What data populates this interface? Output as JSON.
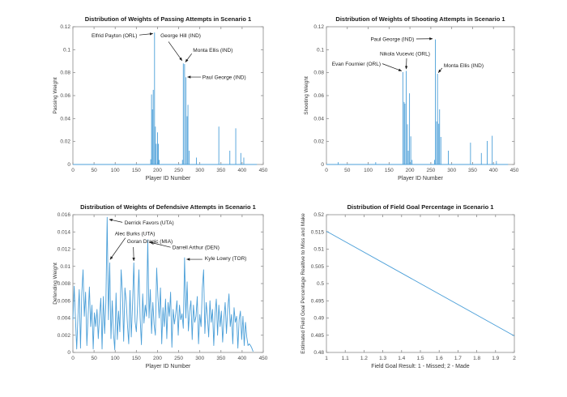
{
  "figure": {
    "background": "#ffffff",
    "accent_color": "#4b9fd8",
    "axis_color": "#8a8a8a",
    "text_color": "#1a1a1a",
    "tick_text_color": "#4a4a4a"
  },
  "chart_data": [
    {
      "name": "passing-weights",
      "type": "stem",
      "title": "Distribution of Weights of Passing Attempts in Scenario 1",
      "xlabel": "Player ID Number",
      "ylabel": "Passing Weight",
      "xlim": [
        0,
        450
      ],
      "ylim": [
        0,
        0.12
      ],
      "grid": false,
      "legend": null,
      "xticks": {
        "values": [
          0,
          50,
          100,
          150,
          200,
          250,
          300,
          350,
          400,
          450
        ],
        "labels": [
          "0",
          "50",
          "100",
          "150",
          "200",
          "250",
          "300",
          "350",
          "400",
          "450"
        ]
      },
      "yticks": {
        "values": [
          0,
          0.02,
          0.04,
          0.06,
          0.08,
          0.1,
          0.12
        ],
        "labels": [
          "0",
          "0.02",
          "0.04",
          "0.06",
          "0.08",
          "0.1",
          "0.12"
        ]
      },
      "baseline_end": 435,
      "points": [
        [
          184,
          0.0045
        ],
        [
          186,
          0.061
        ],
        [
          188,
          0.048
        ],
        [
          190,
          0.065
        ],
        [
          193,
          0.115
        ],
        [
          195,
          0.033
        ],
        [
          197,
          0.018
        ],
        [
          200,
          0.028
        ],
        [
          202,
          0.018
        ],
        [
          204,
          0.004
        ],
        [
          259,
          0.004
        ],
        [
          261,
          0.088
        ],
        [
          264,
          0.0875
        ],
        [
          267,
          0.076
        ],
        [
          270,
          0.042
        ],
        [
          272,
          0.052
        ],
        [
          275,
          0.012
        ],
        [
          292,
          0.006
        ],
        [
          345,
          0.033
        ],
        [
          371,
          0.012
        ],
        [
          385,
          0.0315
        ],
        [
          397,
          0.01
        ],
        [
          404,
          0.006
        ]
      ],
      "annotations": [
        {
          "text": "Elfrid Payton (ORL)",
          "anchor": "end",
          "tpos": [
            152,
            0.111
          ],
          "tail": [
            157,
            0.1128
          ],
          "tip": [
            189,
            0.114
          ]
        },
        {
          "text": "George Hill (IND)",
          "anchor": "start",
          "tpos": [
            207,
            0.111
          ],
          "tail": [
            226,
            0.107
          ],
          "tip": [
            258,
            0.0905
          ]
        },
        {
          "text": "Monta Ellis (IND)",
          "anchor": "start",
          "tpos": [
            284,
            0.0982
          ],
          "tail": [
            281,
            0.0966
          ],
          "tip": [
            266,
            0.0892
          ]
        },
        {
          "text": "Paul George (IND)",
          "anchor": "start",
          "tpos": [
            306,
            0.0746
          ],
          "tail": [
            303,
            0.0762
          ],
          "tip": [
            271,
            0.0762
          ]
        }
      ]
    },
    {
      "name": "shooting-weights",
      "type": "stem",
      "title": "Distribution of Weights of Shooting Attempts in Scenario 1",
      "xlabel": "Player ID Number",
      "ylabel": "Shooting Weight",
      "xlim": [
        0,
        450
      ],
      "ylim": [
        0,
        0.12
      ],
      "grid": false,
      "legend": null,
      "xticks": {
        "values": [
          0,
          50,
          100,
          150,
          200,
          250,
          300,
          350,
          400,
          450
        ],
        "labels": [
          "0",
          "50",
          "100",
          "150",
          "200",
          "250",
          "300",
          "350",
          "400",
          "450"
        ]
      },
      "yticks": {
        "values": [
          0,
          0.02,
          0.04,
          0.06,
          0.08,
          0.1,
          0.12
        ],
        "labels": [
          "0",
          "0.02",
          "0.04",
          "0.06",
          "0.08",
          "0.1",
          "0.12"
        ]
      },
      "baseline_end": 435,
      "points": [
        [
          28,
          0.002
        ],
        [
          118,
          0.002
        ],
        [
          183,
          0.0805
        ],
        [
          186,
          0.0545
        ],
        [
          188,
          0.053
        ],
        [
          191,
          0.0815
        ],
        [
          194,
          0.035
        ],
        [
          196,
          0.012
        ],
        [
          199,
          0.062
        ],
        [
          202,
          0.0245
        ],
        [
          205,
          0.004
        ],
        [
          259,
          0.004
        ],
        [
          261,
          0.109
        ],
        [
          264,
          0.0375
        ],
        [
          266,
          0.079
        ],
        [
          269,
          0.0355
        ],
        [
          271,
          0.048
        ],
        [
          274,
          0.024
        ],
        [
          292,
          0.012
        ],
        [
          345,
          0.019
        ],
        [
          371,
          0.01
        ],
        [
          385,
          0.0205
        ],
        [
          397,
          0.025
        ],
        [
          407,
          0.003
        ]
      ],
      "annotations": [
        {
          "text": "Paul George (IND)",
          "anchor": "end",
          "tpos": [
            210,
            0.1078
          ],
          "tail": [
            215,
            0.1094
          ],
          "tip": [
            254,
            0.1096
          ]
        },
        {
          "text": "Nikola Vucevic (ORL)",
          "anchor": "start",
          "tpos": [
            128,
            0.0948
          ],
          "tail": [
            192,
            0.0925
          ],
          "tip": [
            191,
            0.0832
          ]
        },
        {
          "text": "Evan Fournier (ORL)",
          "anchor": "end",
          "tpos": [
            130,
            0.0862
          ],
          "tail": [
            134,
            0.0878
          ],
          "tip": [
            180,
            0.0815
          ]
        },
        {
          "text": "Monta Ellis (IND)",
          "anchor": "start",
          "tpos": [
            281,
            0.0848
          ],
          "tail": [
            277,
            0.084
          ],
          "tip": [
            268,
            0.08
          ]
        }
      ]
    },
    {
      "name": "defensive-weights",
      "type": "line",
      "title": "Distribution of Weights of Defendsive Attempts in Scenario 1",
      "xlabel": "Player ID Number",
      "ylabel": "Defending Weight",
      "xlim": [
        0,
        450
      ],
      "ylim": [
        0,
        0.016
      ],
      "grid": false,
      "legend": null,
      "xticks": {
        "values": [
          0,
          50,
          100,
          150,
          200,
          250,
          300,
          350,
          400,
          450
        ],
        "labels": [
          "0",
          "50",
          "100",
          "150",
          "200",
          "250",
          "300",
          "350",
          "400",
          "450"
        ]
      },
      "yticks": {
        "values": [
          0,
          0.002,
          0.004,
          0.006,
          0.008,
          0.01,
          0.012,
          0.014,
          0.016
        ],
        "labels": [
          "0",
          "0.002",
          "0.004",
          "0.006",
          "0.008",
          "0.01",
          "0.012",
          "0.014",
          "0.016"
        ]
      },
      "x_start": 0,
      "x_step": 3,
      "values": [
        0.0038,
        0.0077,
        0.004,
        0.0004,
        0.0043,
        0.0073,
        0.0005,
        0.0069,
        0.0096,
        0.0042,
        0.007,
        0.0008,
        0.0043,
        0.0076,
        0.003,
        0.0055,
        0.0004,
        0.0046,
        0.003,
        0.005,
        0.0016,
        0.0043,
        0.0063,
        0.0004,
        0.0065,
        0.0022,
        0.0058,
        0.0157,
        0.0038,
        0.0104,
        0.0016,
        0.006,
        0.0022,
        0.0003,
        0.0069,
        0.0015,
        0.0048,
        0.0024,
        0.0096,
        0.007,
        0.0013,
        0.0075,
        0.006,
        0.0032,
        0.001,
        0.0072,
        0.0018,
        0.0055,
        0.0104,
        0.0036,
        0.0024,
        0.0055,
        0.0096,
        0.004,
        0.0009,
        0.0068,
        0.0034,
        0.0055,
        0.0042,
        0.0131,
        0.004,
        0.0073,
        0.0022,
        0.0058,
        0.0032,
        0.002,
        0.0098,
        0.0065,
        0.004,
        0.0075,
        0.001,
        0.0052,
        0.003,
        0.0062,
        0.0016,
        0.0058,
        0.0042,
        0.007,
        0.0006,
        0.005,
        0.0033,
        0.0045,
        0.006,
        0.002,
        0.0055,
        0.0038,
        0.0045,
        0.0028,
        0.011,
        0.004,
        0.0082,
        0.0025,
        0.0048,
        0.006,
        0.0015,
        0.0055,
        0.0035,
        0.0042,
        0.0065,
        0.001,
        0.0044,
        0.003,
        0.0075,
        0.0096,
        0.0022,
        0.0058,
        0.0042,
        0.0018,
        0.006,
        0.0035,
        0.005,
        0.0008,
        0.0045,
        0.0062,
        0.002,
        0.0055,
        0.003,
        0.0048,
        0.0012,
        0.004,
        0.0058,
        0.0022,
        0.005,
        0.0068,
        0.003,
        0.0044,
        0.001,
        0.0052,
        0.0035,
        0.0042,
        0.0005,
        0.0038,
        0.0048,
        0.0015,
        0.0042,
        0.0008,
        0.0035,
        0.0018,
        0.0008,
        0.001,
        0.0008,
        0.0005,
        0.0001
      ],
      "annotations": [
        {
          "text": "Derrick Favors (UTA)",
          "anchor": "start",
          "tpos": [
            122,
            0.01488
          ],
          "tail": [
            117,
            0.01512
          ],
          "tip": [
            86,
            0.01545
          ]
        },
        {
          "text": "Alec Burks (UTA)",
          "anchor": "start",
          "tpos": [
            99,
            0.01362
          ],
          "tail": [
            124,
            0.0133
          ],
          "tip": [
            88,
            0.0108
          ]
        },
        {
          "text": "Goran Dragic (MIA)",
          "anchor": "start",
          "tpos": [
            128,
            0.0127
          ],
          "tail": [
            143,
            0.01224
          ],
          "tip": [
            144,
            0.01065
          ]
        },
        {
          "text": "Darrell Arthur (DEN)",
          "anchor": "start",
          "tpos": [
            235,
            0.012
          ],
          "tail": [
            231,
            0.01222
          ],
          "tip": [
            182,
            0.0128
          ]
        },
        {
          "text": "Kyle Lowry (TOR)",
          "anchor": "start",
          "tpos": [
            312,
            0.01072
          ],
          "tail": [
            306,
            0.01082
          ],
          "tip": [
            269,
            0.01082
          ]
        }
      ]
    },
    {
      "name": "field-goal-percentage",
      "type": "line",
      "title": "Distribution of Field Goal Percentage in Scenario 1",
      "xlabel": "Field Goal Result: 1 - Missed; 2 - Made",
      "ylabel": "Estimated Field Goal Percentage Realtive to Miss and Make",
      "xlim": [
        1,
        2
      ],
      "ylim": [
        0.48,
        0.52
      ],
      "grid": false,
      "legend": null,
      "xticks": {
        "values": [
          1,
          1.1,
          1.2,
          1.3,
          1.4,
          1.5,
          1.6,
          1.7,
          1.8,
          1.9,
          2
        ],
        "labels": [
          "1",
          "1.1",
          "1.2",
          "1.3",
          "1.4",
          "1.5",
          "1.6",
          "1.7",
          "1.8",
          "1.9",
          "2"
        ]
      },
      "yticks": {
        "values": [
          0.48,
          0.485,
          0.49,
          0.495,
          0.5,
          0.505,
          0.51,
          0.515,
          0.52
        ],
        "labels": [
          "0.48",
          "0.485",
          "0.49",
          "0.495",
          "0.5",
          "0.505",
          "0.51",
          "0.515",
          "0.52"
        ]
      },
      "points": [
        [
          1,
          0.5152
        ],
        [
          2,
          0.4848
        ]
      ],
      "annotations": []
    }
  ]
}
